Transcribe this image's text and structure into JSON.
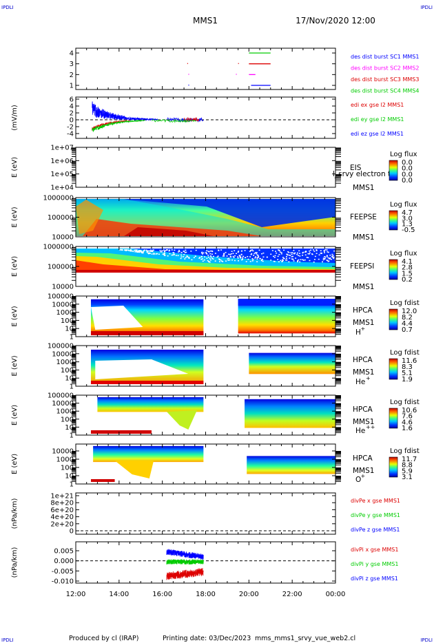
{
  "header": {
    "corner_left_top": "IPDLI",
    "corner_right_top": "IPDLI",
    "corner_left_bottom": "IPDLI",
    "corner_right_bottom": "IPDLI",
    "spacecraft": "MMS1",
    "date_time": "17/Nov/2020 12:00"
  },
  "footer": {
    "produced_by": "Produced by cl (IRAP)",
    "printing_date": "Printing date: 03/Dec/2023",
    "script_name": "mms_mms1_srvy_vue_web2.cl"
  },
  "colors": {
    "red": "#ff0000",
    "green": "#00dd00",
    "blue": "#0000ff",
    "magenta": "#ff00ff"
  },
  "chart_data": {
    "type": "multi-panel time series",
    "x_tick_labels": [
      "12:00",
      "14:00",
      "16:00",
      "18:00",
      "20:00",
      "22:00",
      "00:00"
    ],
    "x_range_hours": [
      12,
      24
    ],
    "panels": [
      {
        "id": "burst",
        "type": "line",
        "ylabel": "",
        "yticks": [
          "1",
          "2",
          "3",
          "4"
        ],
        "legend": [
          {
            "text": "des dist burst SC1 MMS1",
            "color": "#0000ff"
          },
          {
            "text": "des dist burst SC2 MMS2",
            "color": "#ff00ff"
          },
          {
            "text": "des dist burst SC3 MMS3",
            "color": "#dd0000"
          },
          {
            "text": "des dist burst SC4 MMS4",
            "color": "#00cc00"
          }
        ],
        "segments": [
          {
            "spacecraft": 4,
            "y": 4,
            "x": [
              20.0,
              21.0
            ],
            "color": "#00cc00"
          },
          {
            "spacecraft": 3,
            "y": 3,
            "x": [
              20.0,
              21.0
            ],
            "color": "#dd0000"
          },
          {
            "spacecraft": 2,
            "y": 2,
            "x": [
              20.0,
              20.3
            ],
            "color": "#ff00ff"
          },
          {
            "spacecraft": 1,
            "y": 1,
            "x": [
              20.1,
              21.0
            ],
            "color": "#0000ff"
          }
        ]
      },
      {
        "id": "edi",
        "type": "line",
        "ylabel": "(mV/m)",
        "yticks": [
          "-4",
          "-2",
          "0",
          "2",
          "4",
          "6"
        ],
        "legend": [
          {
            "text": "edi ex gse l2 MMS1",
            "color": "#dd0000"
          },
          {
            "text": "edi ey gse l2 MMS1",
            "color": "#00cc00"
          },
          {
            "text": "edi ez gse l2 MMS1",
            "color": "#0000ff"
          }
        ]
      },
      {
        "id": "eis",
        "type": "heatmap",
        "ylabel": "E (eV)",
        "yticks": [
          "1e+04",
          "1e+05",
          "1e+06",
          "1e+07"
        ],
        "label": "EIS",
        "label2": "MMS1",
        "overlay_text": "l_srvy electron to",
        "cbar_title": "Log flux",
        "cbar_ticks": [
          "0.0",
          "0.0",
          "0.0",
          "0.0"
        ]
      },
      {
        "id": "feepse",
        "type": "heatmap",
        "ylabel": "E (eV)",
        "yticks": [
          "10000",
          "100000",
          "1000000"
        ],
        "label": "FEEPSE",
        "label2": "MMS1",
        "cbar_title": "Log flux",
        "cbar_ticks": [
          "4.7",
          "3.0",
          "1.3",
          "-0.5"
        ]
      },
      {
        "id": "feepsi",
        "type": "heatmap",
        "ylabel": "E (eV)",
        "yticks": [
          "10000",
          "100000",
          "1000000"
        ],
        "label": "FEEPSI",
        "label2": "MMS1",
        "cbar_title": "Log flux",
        "cbar_ticks": [
          "4.1",
          "2.8",
          "1.5",
          "0.2"
        ]
      },
      {
        "id": "hpca_h",
        "type": "heatmap",
        "ylabel": "E (eV)",
        "yticks": [
          "1",
          "10",
          "100",
          "1000",
          "10000",
          "100000"
        ],
        "label": "HPCA",
        "label2": "MMS1",
        "species": "H",
        "charge": "+",
        "cbar_title": "Log fdist",
        "cbar_ticks": [
          "12.0",
          "8.2",
          "4.4",
          "0.7"
        ]
      },
      {
        "id": "hpca_he",
        "type": "heatmap",
        "ylabel": "E (eV)",
        "yticks": [
          "1",
          "10",
          "100",
          "1000",
          "10000",
          "100000"
        ],
        "label": "HPCA",
        "label2": "MMS1",
        "species": "He",
        "charge": "+",
        "cbar_title": "Log fdist",
        "cbar_ticks": [
          "11.6",
          "8.3",
          "5.1",
          "1.9"
        ]
      },
      {
        "id": "hpca_he2",
        "type": "heatmap",
        "ylabel": "E (eV)",
        "yticks": [
          "1",
          "10",
          "100",
          "1000",
          "10000",
          "100000"
        ],
        "label": "HPCA",
        "label2": "MMS1",
        "species": "He",
        "charge": "++",
        "cbar_title": "Log fdist",
        "cbar_ticks": [
          "10.6",
          "7.6",
          "4.6",
          "1.6"
        ]
      },
      {
        "id": "hpca_o",
        "type": "heatmap",
        "ylabel": "E (eV)",
        "yticks": [
          "1",
          "10",
          "100",
          "1000",
          "10000"
        ],
        "label": "HPCA",
        "label2": "MMS1",
        "species": "O",
        "charge": "+",
        "cbar_title": "Log fdist",
        "cbar_ticks": [
          "11.7",
          "8.8",
          "5.9",
          "3.1"
        ]
      },
      {
        "id": "divpe",
        "type": "line",
        "ylabel": "(nPa/km)",
        "yticks": [
          "0",
          "2e+20",
          "4e+20",
          "6e+20",
          "8e+20",
          "1e+21"
        ],
        "legend": [
          {
            "text": "divPe x gse MMS1",
            "color": "#dd0000"
          },
          {
            "text": "divPe y gse MMS1",
            "color": "#00cc00"
          },
          {
            "text": "divPe z gse MMS1",
            "color": "#0000ff"
          }
        ]
      },
      {
        "id": "divpi",
        "type": "line",
        "ylabel": "(nPa/km)",
        "yticks": [
          "-0.010",
          "-0.005",
          "0.000",
          "0.005"
        ],
        "legend": [
          {
            "text": "divPi x gse MMS1",
            "color": "#dd0000"
          },
          {
            "text": "divPi y gse MMS1",
            "color": "#00cc00"
          },
          {
            "text": "divPi z gse MMS1",
            "color": "#0000ff"
          }
        ]
      }
    ]
  }
}
